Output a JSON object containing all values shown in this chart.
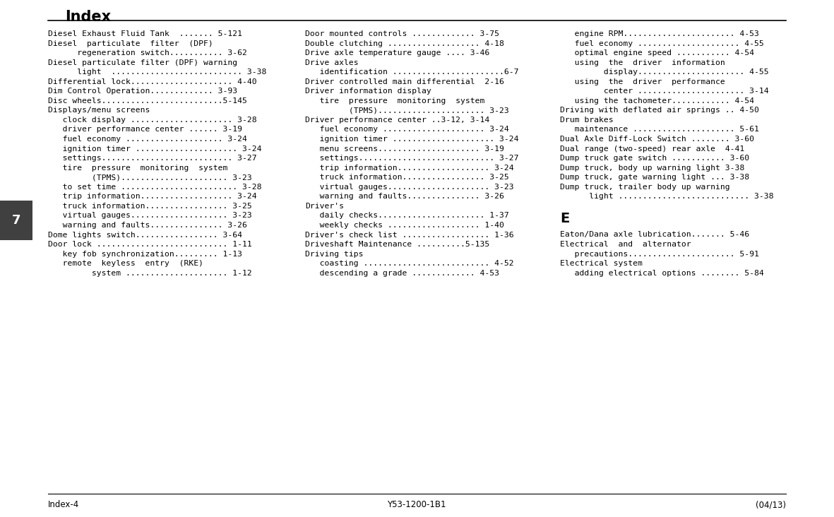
{
  "bg_color": "#ffffff",
  "header_title": "Index",
  "footer_left": "Index-4",
  "footer_center": "Y53-1200-1B1",
  "footer_right": "(04/13)",
  "sidebar_number": "7",
  "col1_lines": [
    "Diesel Exhaust Fluid Tank  ....... 5-121",
    "Diesel  particulate  filter  (DPF)",
    "      regeneration switch........... 3-62",
    "Diesel particulate filter (DPF) warning",
    "      light  ........................... 3-38",
    "Differential lock..................... 4-40",
    "Dim Control Operation............. 3-93",
    "Disc wheels.........................5-145",
    "Displays/menu screens",
    "   clock display ..................... 3-28",
    "   driver performance center ...... 3-19",
    "   fuel economy .................... 3-24",
    "   ignition timer ..................... 3-24",
    "   settings........................... 3-27",
    "   tire  pressure  monitoring  system",
    "         (TPMS)...................... 3-23",
    "   to set time ........................ 3-28",
    "   trip information................... 3-24",
    "   truck information................. 3-25",
    "   virtual gauges.................... 3-23",
    "   warning and faults............... 3-26",
    "Dome lights switch................. 3-64",
    "Door lock ........................... 1-11",
    "   key fob synchronization......... 1-13",
    "   remote  keyless  entry  (RKE)",
    "         system ..................... 1-12"
  ],
  "col2_lines": [
    "Door mounted controls ............. 3-75",
    "Double clutching ................... 4-18",
    "Drive axle temperature gauge .... 3-46",
    "Drive axles",
    "   identification .......................6-7",
    "Driver controlled main differential  2-16",
    "Driver information display",
    "   tire  pressure  monitoring  system",
    "         (TPMS)...................... 3-23",
    "Driver performance center ..3-12, 3-14",
    "   fuel economy ..................... 3-24",
    "   ignition timer ..................... 3-24",
    "   menu screens..................... 3-19",
    "   settings............................ 3-27",
    "   trip information................... 3-24",
    "   truck information................. 3-25",
    "   virtual gauges..................... 3-23",
    "   warning and faults............... 3-26",
    "Driver's",
    "   daily checks...................... 1-37",
    "   weekly checks ................... 1-40",
    "Driver's check list .................. 1-36",
    "Driveshaft Maintenance ..........5-135",
    "Driving tips",
    "   coasting .......................... 4-52",
    "   descending a grade ............. 4-53"
  ],
  "col3_lines": [
    "   engine RPM....................... 4-53",
    "   fuel economy ..................... 4-55",
    "   optimal engine speed ........... 4-54",
    "   using  the  driver  information",
    "         display...................... 4-55",
    "   using  the  driver  performance",
    "         center ...................... 3-14",
    "   using the tachometer............ 4-54",
    "Driving with deflated air springs .. 4-50",
    "Drum brakes",
    "   maintenance ..................... 5-61",
    "Dual Axle Diff-Lock Switch ........ 3-60",
    "Dual range (two-speed) rear axle  4-41",
    "Dump truck gate switch ........... 3-60",
    "Dump truck, body up warning light 3-38",
    "Dump truck, gate warning light ... 3-38",
    "Dump truck, trailer body up warning",
    "      light ........................... 3-38",
    "",
    "E",
    "",
    "Eaton/Dana axle lubrication....... 5-46",
    "Electrical  and  alternator",
    "   precautions...................... 5-91",
    "Electrical system",
    "   adding electrical options ........ 5-84"
  ]
}
